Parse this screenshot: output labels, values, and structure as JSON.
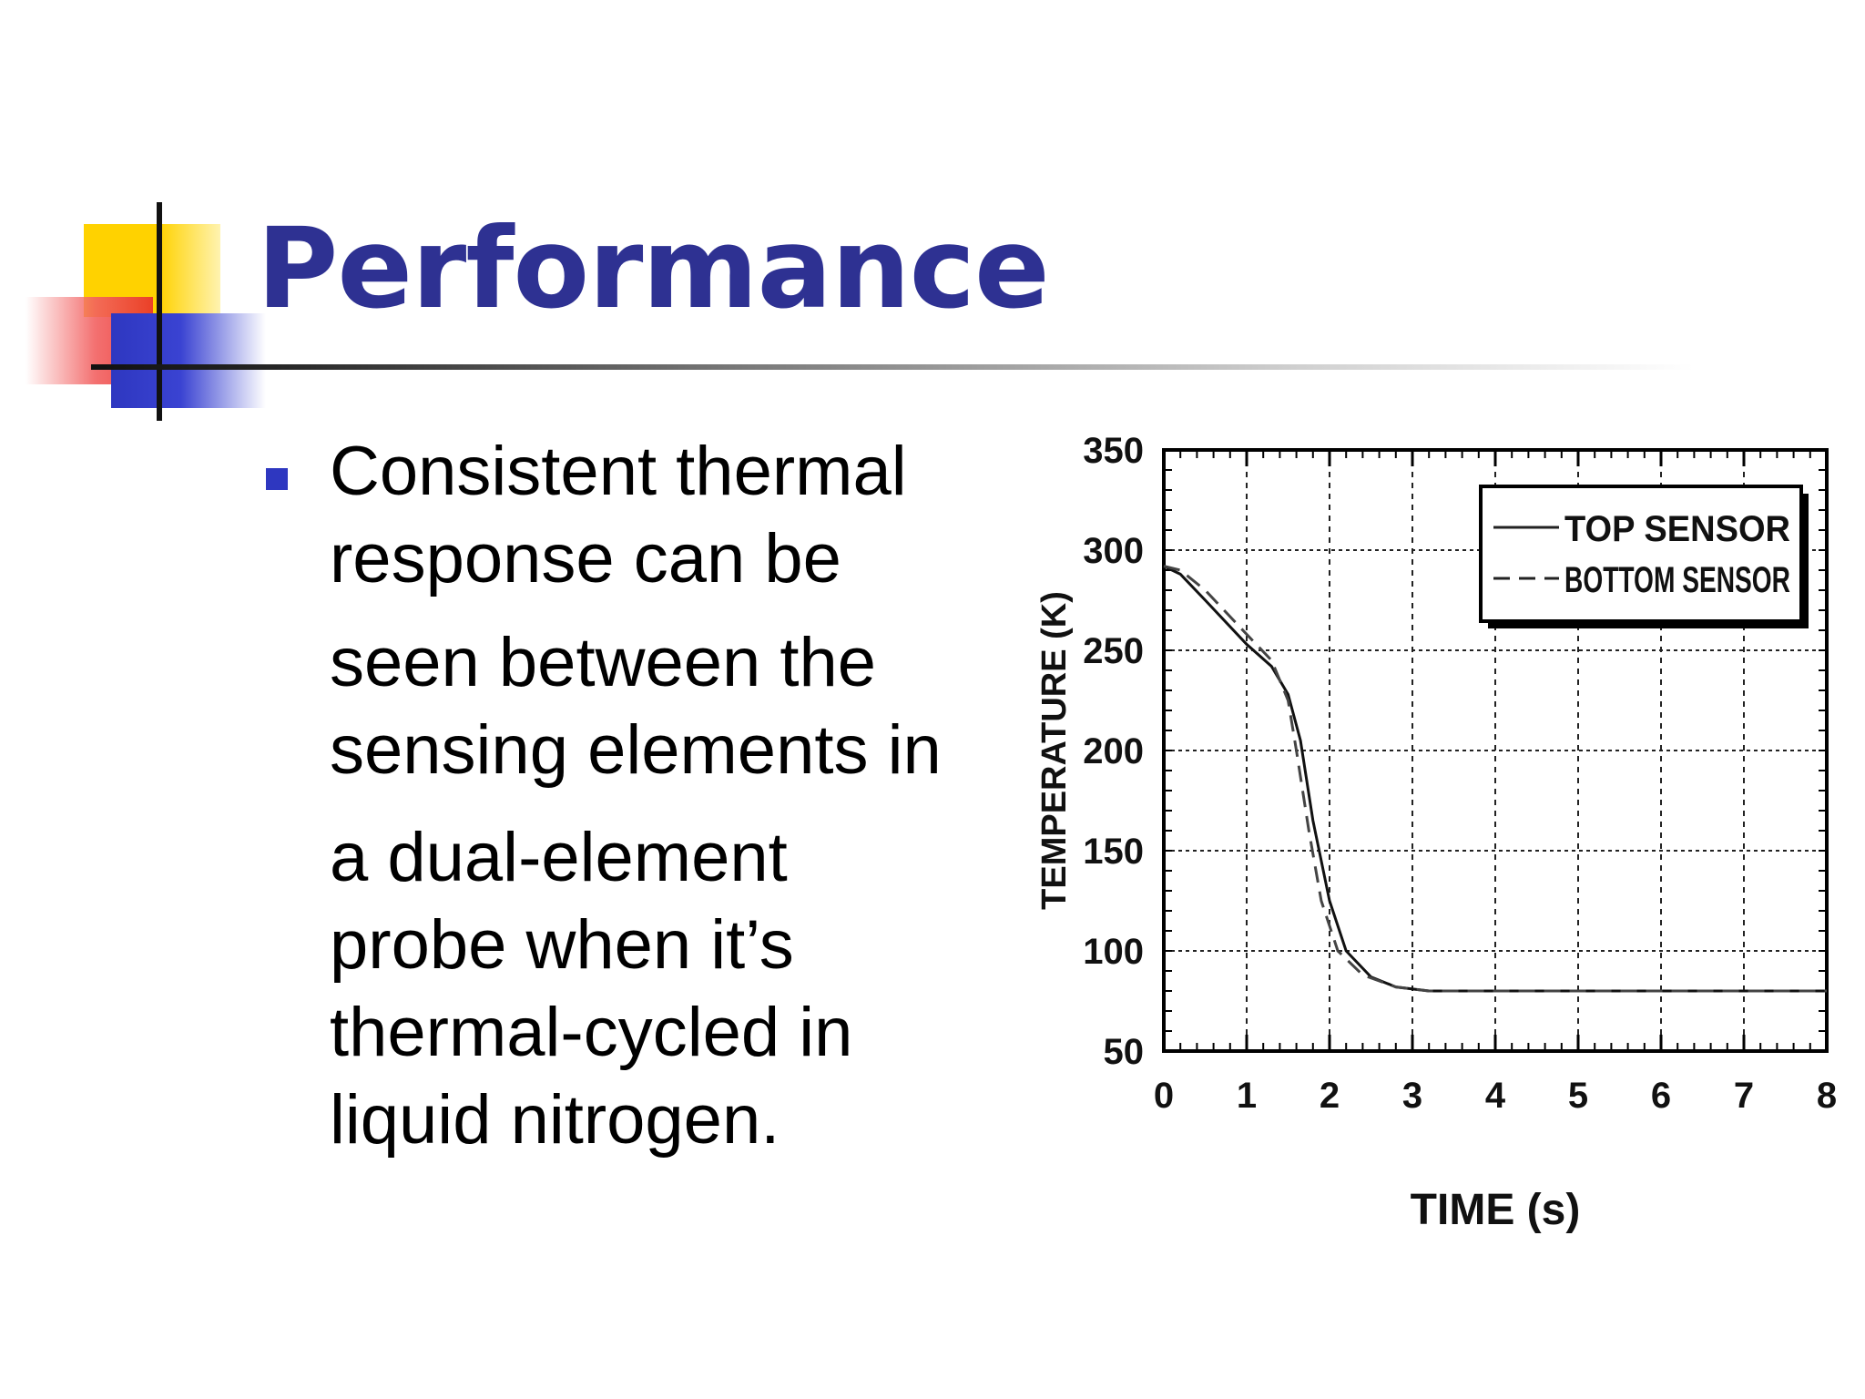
{
  "slide": {
    "title": "Performance",
    "bullet_lines": [
      "Consistent thermal",
      "response can  be",
      "seen between the",
      "sensing elements in",
      "a dual-element",
      "probe when it’s",
      "thermal-cycled in",
      "liquid nitrogen."
    ]
  },
  "chart_data": {
    "type": "line",
    "title": "",
    "xlabel": "TIME (s)",
    "ylabel": "TEMPERATURE (K)",
    "xlim": [
      0,
      8
    ],
    "ylim": [
      50,
      350
    ],
    "x_ticks": [
      "0",
      "1",
      "2",
      "3",
      "4",
      "5",
      "6",
      "7",
      "8"
    ],
    "y_ticks": [
      "50",
      "100",
      "150",
      "200",
      "250",
      "300",
      "350"
    ],
    "grid": true,
    "legend_position": "top-right",
    "series": [
      {
        "name": "TOP SENSOR",
        "style": "solid",
        "x": [
          0,
          0.2,
          0.5,
          1.0,
          1.3,
          1.5,
          1.65,
          1.8,
          2.0,
          2.2,
          2.5,
          2.8,
          3.2,
          4.0,
          5.0,
          6.0,
          7.0,
          8.0
        ],
        "y": [
          292,
          288,
          275,
          253,
          242,
          228,
          205,
          165,
          125,
          100,
          87,
          82,
          80,
          80,
          80,
          80,
          80,
          80
        ]
      },
      {
        "name": "BOTTOM SENSOR",
        "style": "dashed",
        "x": [
          0,
          0.2,
          0.5,
          1.0,
          1.3,
          1.5,
          1.6,
          1.75,
          1.9,
          2.1,
          2.4,
          2.8,
          3.2,
          4.0,
          5.0,
          6.0,
          7.0,
          8.0
        ],
        "y": [
          292,
          290,
          280,
          258,
          245,
          225,
          200,
          160,
          125,
          100,
          88,
          82,
          80,
          80,
          80,
          80,
          80,
          80
        ]
      }
    ]
  }
}
